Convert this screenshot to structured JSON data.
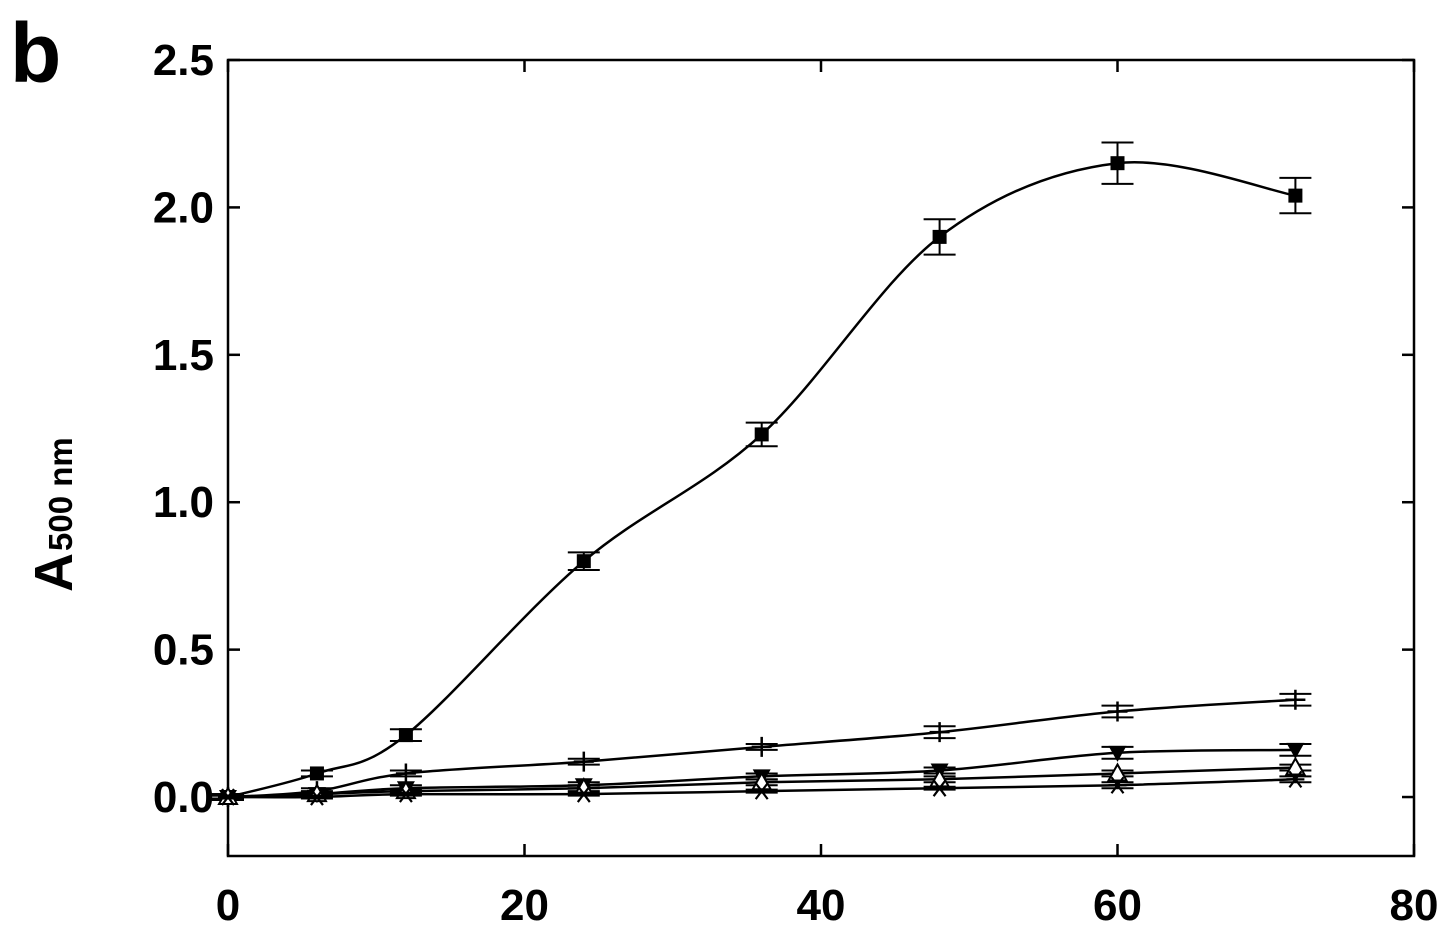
{
  "panel_label": "b",
  "chart_data": {
    "type": "line",
    "title": "",
    "xlabel": "",
    "ylabel": {
      "main": "A",
      "subscript": "500 nm"
    },
    "xlim": [
      0,
      80
    ],
    "ylim": [
      -0.2,
      2.5
    ],
    "xticks": [
      0,
      20,
      40,
      60,
      80
    ],
    "xtick_labels": [
      "0",
      "20",
      "40",
      "60",
      "80"
    ],
    "yticks": [
      0,
      0.5,
      1,
      1.5,
      2,
      2.5
    ],
    "ytick_labels": [
      "0.0",
      "0.5",
      "1.0",
      "1.5",
      "2.0",
      "2.5"
    ],
    "grid": false,
    "legend": "none",
    "x": [
      0,
      6,
      12,
      24,
      36,
      48,
      60,
      72
    ],
    "series": [
      {
        "marker": "filled-square",
        "values": [
          0.0,
          0.08,
          0.21,
          0.8,
          1.23,
          1.9,
          2.15,
          2.04
        ],
        "errors": [
          0.01,
          0.01,
          0.02,
          0.03,
          0.04,
          0.06,
          0.07,
          0.06
        ]
      },
      {
        "marker": "plus",
        "values": [
          0.0,
          0.02,
          0.08,
          0.12,
          0.17,
          0.22,
          0.29,
          0.33
        ],
        "errors": [
          0.01,
          0.01,
          0.01,
          0.01,
          0.01,
          0.02,
          0.02,
          0.02
        ]
      },
      {
        "marker": "filled-down-triangle",
        "values": [
          0.0,
          0.01,
          0.03,
          0.04,
          0.07,
          0.09,
          0.15,
          0.16
        ],
        "errors": [
          0.01,
          0.01,
          0.01,
          0.01,
          0.01,
          0.01,
          0.02,
          0.02
        ]
      },
      {
        "marker": "open-up-triangle",
        "values": [
          0.0,
          0.01,
          0.02,
          0.03,
          0.05,
          0.06,
          0.08,
          0.1
        ],
        "errors": [
          0.005,
          0.005,
          0.005,
          0.01,
          0.01,
          0.01,
          0.01,
          0.01
        ]
      },
      {
        "marker": "asterisk",
        "values": [
          0.0,
          0.0,
          0.01,
          0.01,
          0.02,
          0.03,
          0.04,
          0.06
        ],
        "errors": [
          0.005,
          0.005,
          0.005,
          0.005,
          0.005,
          0.005,
          0.01,
          0.01
        ]
      }
    ]
  }
}
